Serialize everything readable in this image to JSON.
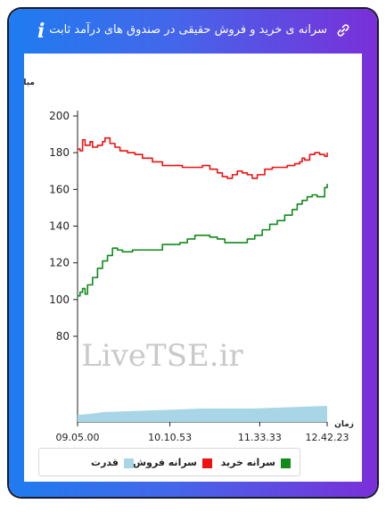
{
  "header": {
    "title": "سرانه ی خرید و فروش حقیقی در صندوق های درآمد ثابت",
    "info_label": "i",
    "link_icon": "link-icon"
  },
  "colors": {
    "buy": "#118a1a",
    "sell": "#ee1111",
    "power": "#a9d6e6"
  },
  "watermark": "LiveTSE.ir",
  "chart_data": {
    "type": "line",
    "ylabel": "میلیون تومان",
    "xlabel": "زمان",
    "yticks": [
      "200",
      "180",
      "160",
      "140",
      "120",
      "100",
      "80"
    ],
    "ylim": [
      80,
      200
    ],
    "xticks": [
      "09.05.00",
      "10.10.53",
      "11.33.33",
      "12.42.23"
    ],
    "x_index_range": [
      0,
      100
    ],
    "grid": false,
    "legend_position": "bottom",
    "legend": [
      "سرانه خرید",
      "سرانه فروش",
      "قدرت"
    ],
    "series": [
      {
        "name": "سرانه فروش",
        "color": "#ee1111",
        "points": [
          [
            0,
            182
          ],
          [
            1,
            181
          ],
          [
            2,
            187
          ],
          [
            3,
            184
          ],
          [
            5,
            186
          ],
          [
            6,
            183
          ],
          [
            8,
            184
          ],
          [
            10,
            186
          ],
          [
            11,
            188
          ],
          [
            13,
            185
          ],
          [
            15,
            183
          ],
          [
            17,
            181
          ],
          [
            20,
            180
          ],
          [
            23,
            179
          ],
          [
            26,
            177
          ],
          [
            30,
            175
          ],
          [
            34,
            173
          ],
          [
            38,
            173
          ],
          [
            42,
            172
          ],
          [
            46,
            172
          ],
          [
            50,
            173
          ],
          [
            53,
            171
          ],
          [
            56,
            169
          ],
          [
            58,
            167
          ],
          [
            60,
            166
          ],
          [
            62,
            168
          ],
          [
            64,
            170
          ],
          [
            66,
            169
          ],
          [
            68,
            168
          ],
          [
            70,
            166
          ],
          [
            72,
            168
          ],
          [
            75,
            171
          ],
          [
            78,
            172
          ],
          [
            81,
            172
          ],
          [
            84,
            173
          ],
          [
            87,
            174
          ],
          [
            89,
            175
          ],
          [
            90,
            177
          ],
          [
            91,
            176
          ],
          [
            93,
            179
          ],
          [
            95,
            180
          ],
          [
            97,
            179
          ],
          [
            99,
            178
          ],
          [
            100,
            180
          ]
        ]
      },
      {
        "name": "سرانه خرید",
        "color": "#118a1a",
        "points": [
          [
            0,
            102
          ],
          [
            1,
            104
          ],
          [
            2,
            106
          ],
          [
            3,
            103
          ],
          [
            4,
            108
          ],
          [
            6,
            112
          ],
          [
            8,
            117
          ],
          [
            10,
            121
          ],
          [
            12,
            124
          ],
          [
            14,
            128
          ],
          [
            16,
            127
          ],
          [
            18,
            126
          ],
          [
            22,
            127
          ],
          [
            26,
            127
          ],
          [
            30,
            127
          ],
          [
            34,
            130
          ],
          [
            38,
            130
          ],
          [
            41,
            131
          ],
          [
            44,
            133
          ],
          [
            47,
            135
          ],
          [
            50,
            135
          ],
          [
            53,
            134
          ],
          [
            56,
            133
          ],
          [
            59,
            131
          ],
          [
            62,
            131
          ],
          [
            66,
            131
          ],
          [
            68,
            133
          ],
          [
            71,
            135
          ],
          [
            74,
            138
          ],
          [
            77,
            141
          ],
          [
            80,
            143
          ],
          [
            83,
            146
          ],
          [
            86,
            149
          ],
          [
            88,
            152
          ],
          [
            90,
            154
          ],
          [
            92,
            156
          ],
          [
            94,
            157
          ],
          [
            96,
            156
          ],
          [
            98,
            156
          ],
          [
            99,
            161
          ],
          [
            100,
            163
          ]
        ]
      },
      {
        "name": "قدرت",
        "color": "#a9d6e6",
        "points": [
          [
            0,
            8
          ],
          [
            5,
            9
          ],
          [
            10,
            11
          ],
          [
            20,
            12
          ],
          [
            30,
            13
          ],
          [
            40,
            14
          ],
          [
            50,
            15
          ],
          [
            60,
            15
          ],
          [
            70,
            15
          ],
          [
            80,
            16
          ],
          [
            90,
            17
          ],
          [
            100,
            18
          ]
        ]
      }
    ]
  }
}
